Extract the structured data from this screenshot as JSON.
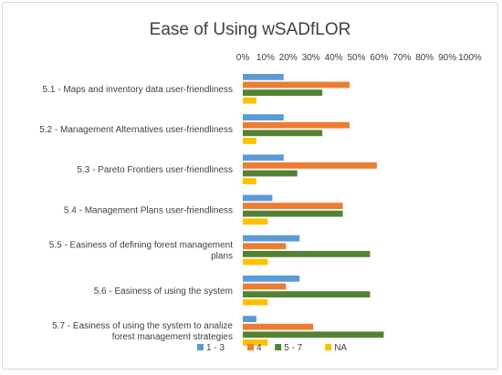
{
  "chart_data": {
    "type": "bar",
    "orientation": "horizontal",
    "title": "Ease of Using wSADfLOR",
    "xlabel": "",
    "ylabel": "",
    "xlim": [
      0,
      100
    ],
    "tick_labels": [
      "0%",
      "10%",
      "20%",
      "30%",
      "40%",
      "50%",
      "60%",
      "70%",
      "80%",
      "90%",
      "100%"
    ],
    "grid": false,
    "axis_position": "top",
    "legend_position": "bottom",
    "categories": [
      [
        "5.1 - Maps and inventory data user-friendliness"
      ],
      [
        "5.2  - Management Alternatives user-friendliness"
      ],
      [
        "5.3 - Pareto Frontiers user-friendliness"
      ],
      [
        "5.4 - Management Plans user-friendliness"
      ],
      [
        "5.5 - Easiness of defining forest management",
        "plans"
      ],
      [
        "5.6 - Easiness of using the system"
      ],
      [
        "5.7 - Easiness of using the system to analize",
        "forest management strategies"
      ]
    ],
    "series": [
      {
        "name": "1 - 3",
        "color": "#5b9bd5",
        "values": [
          18,
          18,
          18,
          13,
          25,
          25,
          6
        ]
      },
      {
        "name": "4",
        "color": "#ed7d31",
        "values": [
          47,
          47,
          59,
          44,
          19,
          19,
          31
        ]
      },
      {
        "name": "5 - 7",
        "color": "#548235",
        "values": [
          35,
          35,
          24,
          44,
          56,
          56,
          62
        ]
      },
      {
        "name": "NA",
        "color": "#ffc000",
        "values": [
          6,
          6,
          6,
          11,
          11,
          11,
          11
        ]
      }
    ]
  }
}
